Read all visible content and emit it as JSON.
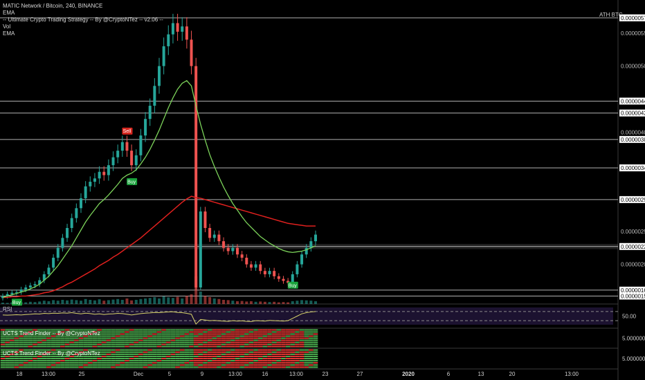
{
  "header": {
    "symbol_line": "MATIC Network / Bitcoin, 240, BINANCE",
    "indicators": [
      "EMA",
      "-- Ultimate Crypto Trading Strategy -- By @CryptoNTez -- v2.06 --",
      "Vol",
      "EMA"
    ]
  },
  "ath_label": "ATH  BTC",
  "colors": {
    "background": "#000000",
    "candle_up": "#26a69a",
    "candle_down": "#ef5350",
    "ema_fast": "#7cd35a",
    "ema_slow": "#e0201e",
    "level_line": "#cfcfcf",
    "rsi_line": "#d8d46a",
    "rsi_fill": "#1c1230",
    "trend_green": "#4caf50",
    "trend_red": "#e53935",
    "buy_tag": "#1aa33c",
    "sell_tag": "#d7261e"
  },
  "price_axis": [
    "0.00000600",
    "0.00000573",
    "0.00000550",
    "0.00000500",
    "0.00000447",
    "0.00000429",
    "0.00000400",
    "0.00000389",
    "0.00000346",
    "0.00000298",
    "0.00000250",
    "0.00000227",
    "0.00000200",
    "0.00000161",
    "0.00000152"
  ],
  "time_axis": [
    "18",
    "13:00",
    "25",
    "Dec",
    "5",
    "9",
    "13:00",
    "16",
    "13:00",
    "23",
    "27",
    "2020",
    "6",
    "13",
    "20",
    "13:00"
  ],
  "rsi_panel": {
    "title": "RSI",
    "level": "50.00"
  },
  "trend_panels": [
    {
      "title": "UCTS Trend Finder -- By @CryptoNTez",
      "axis": "5.0000000"
    },
    {
      "title": "UCTS Trend Finder -- By @CryptoNTez",
      "axis": "5.0000000"
    }
  ],
  "signals": [
    {
      "label": "Buy",
      "date_index": 3
    },
    {
      "label": "Sell",
      "date_index": 27
    },
    {
      "label": "Buy",
      "date_index": 28
    },
    {
      "label": "Sell",
      "date_index": 37
    },
    {
      "label": "Buy",
      "date_index": 63
    }
  ],
  "chart_data": {
    "type": "candlestick",
    "title": "MATIC Network / Bitcoin, 240, BINANCE",
    "ylim": [
      1.4e-06,
      6e-06
    ],
    "horizontal_levels": [
      5.73e-06,
      4.47e-06,
      4.29e-06,
      3.89e-06,
      3.46e-06,
      2.98e-06,
      2.27e-06,
      1.61e-06,
      1.52e-06
    ],
    "close_series": [
      1.52e-06,
      1.55e-06,
      1.57e-06,
      1.58e-06,
      1.62e-06,
      1.65e-06,
      1.68e-06,
      1.7e-06,
      1.76e-06,
      1.85e-06,
      1.95e-06,
      2.1e-06,
      2.25e-06,
      2.4e-06,
      2.55e-06,
      2.7e-06,
      2.85e-06,
      3e-06,
      3.18e-06,
      3.25e-06,
      3.3e-06,
      3.4e-06,
      3.35e-06,
      3.5e-06,
      3.62e-06,
      3.72e-06,
      3.85e-06,
      3.72e-06,
      3.5e-06,
      3.65e-06,
      3.95e-06,
      4.2e-06,
      4.4e-06,
      4.7e-06,
      5e-06,
      5.3e-06,
      5.48e-06,
      5.65e-06,
      5.52e-06,
      5.6e-06,
      5.4e-06,
      5e-06,
      1.65e-06,
      2.8e-06,
      2.55e-06,
      2.4e-06,
      2.45e-06,
      2.35e-06,
      2.25e-06,
      2.2e-06,
      2.25e-06,
      2.15e-06,
      2.1e-06,
      2e-06,
      1.95e-06,
      2e-06,
      1.9e-06,
      1.85e-06,
      1.9e-06,
      1.82e-06,
      1.78e-06,
      1.75e-06,
      1.72e-06,
      1.85e-06,
      2e-06,
      2.15e-06,
      2.25e-06,
      2.35e-06,
      2.45e-06
    ],
    "ema_fast": [
      1.5e-06,
      1.52e-06,
      1.54e-06,
      1.56e-06,
      1.58e-06,
      1.6e-06,
      1.63e-06,
      1.66e-06,
      1.7e-06,
      1.76e-06,
      1.82e-06,
      1.9e-06,
      1.98e-06,
      2.08e-06,
      2.18e-06,
      2.28e-06,
      2.4e-06,
      2.52e-06,
      2.64e-06,
      2.74e-06,
      2.83e-06,
      2.92e-06,
      2.98e-06,
      3.05e-06,
      3.13e-06,
      3.21e-06,
      3.3e-06,
      3.35e-06,
      3.38e-06,
      3.43e-06,
      3.52e-06,
      3.62e-06,
      3.74e-06,
      3.88e-06,
      4.03e-06,
      4.2e-06,
      4.37e-06,
      4.52e-06,
      4.65e-06,
      4.74e-06,
      4.78e-06,
      4.7e-06,
      4.4e-06,
      4.12e-06,
      3.88e-06,
      3.66e-06,
      3.48e-06,
      3.32e-06,
      3.17e-06,
      3.04e-06,
      2.92e-06,
      2.82e-06,
      2.72e-06,
      2.63e-06,
      2.56e-06,
      2.49e-06,
      2.42e-06,
      2.37e-06,
      2.32e-06,
      2.28e-06,
      2.24e-06,
      2.21e-06,
      2.19e-06,
      2.18e-06,
      2.19e-06,
      2.2e-06,
      2.22e-06,
      2.25e-06,
      2.28e-06
    ],
    "ema_slow": [
      1.5e-06,
      1.5e-06,
      1.51e-06,
      1.51e-06,
      1.52e-06,
      1.52e-06,
      1.53e-06,
      1.54e-06,
      1.55e-06,
      1.57e-06,
      1.58e-06,
      1.6e-06,
      1.63e-06,
      1.66e-06,
      1.7e-06,
      1.73e-06,
      1.77e-06,
      1.81e-06,
      1.85e-06,
      1.89e-06,
      1.93e-06,
      1.98e-06,
      2.02e-06,
      2.06e-06,
      2.11e-06,
      2.15e-06,
      2.2e-06,
      2.25e-06,
      2.3e-06,
      2.35e-06,
      2.4e-06,
      2.46e-06,
      2.52e-06,
      2.58e-06,
      2.64e-06,
      2.7e-06,
      2.76e-06,
      2.82e-06,
      2.88e-06,
      2.94e-06,
      2.99e-06,
      3.03e-06,
      3.01e-06,
      3e-06,
      2.98e-06,
      2.96e-06,
      2.94e-06,
      2.92e-06,
      2.9e-06,
      2.88e-06,
      2.86e-06,
      2.84e-06,
      2.82e-06,
      2.8e-06,
      2.78e-06,
      2.76e-06,
      2.74e-06,
      2.72e-06,
      2.7e-06,
      2.68e-06,
      2.66e-06,
      2.64e-06,
      2.62e-06,
      2.61e-06,
      2.6e-06,
      2.59e-06,
      2.58e-06,
      2.58e-06,
      2.58e-06
    ],
    "volume": [
      5,
      4,
      6,
      5,
      7,
      6,
      8,
      7,
      9,
      12,
      10,
      14,
      12,
      15,
      13,
      16,
      14,
      12,
      18,
      15,
      13,
      17,
      12,
      14,
      16,
      18,
      15,
      20,
      13,
      15,
      18,
      20,
      22,
      25,
      20,
      28,
      24,
      22,
      26,
      20,
      30,
      35,
      100,
      45,
      30,
      25,
      20,
      18,
      15,
      14,
      12,
      10,
      11,
      9,
      10,
      8,
      9,
      8,
      7,
      8,
      6,
      7,
      6,
      10,
      12,
      14,
      13,
      12,
      10
    ],
    "rsi": [
      55,
      54,
      55,
      56,
      55,
      57,
      58,
      60,
      59,
      62,
      61,
      63,
      62,
      64,
      63,
      65,
      62,
      60,
      63,
      61,
      58,
      60,
      57,
      59,
      60,
      62,
      61,
      58,
      55,
      58,
      61,
      63,
      64,
      66,
      65,
      67,
      68,
      69,
      66,
      65,
      62,
      58,
      15,
      35,
      33,
      30,
      31,
      29,
      28,
      27,
      30,
      28,
      29,
      27,
      26,
      30,
      29,
      28,
      31,
      30,
      29,
      28,
      30,
      40,
      50,
      60,
      65,
      68,
      70
    ]
  }
}
